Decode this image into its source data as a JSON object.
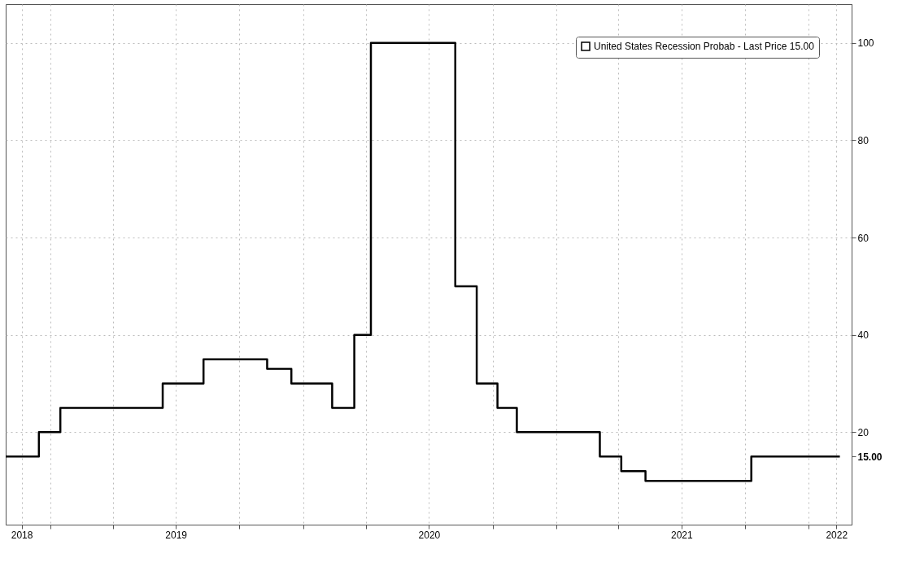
{
  "chart_data": {
    "type": "step",
    "series": [
      {
        "name": "United States Recession Probab - Last Price 15.00",
        "color": "#000000",
        "x": [
          "2018-10-28",
          "2018-12-15",
          "2019-01-15",
          "2019-06-12",
          "2019-08-10",
          "2019-11-10",
          "2019-12-15",
          "2020-02-12",
          "2020-03-15",
          "2020-04-08",
          "2020-08-08",
          "2020-09-08",
          "2020-10-08",
          "2020-11-05",
          "2021-03-05",
          "2021-04-05",
          "2021-05-10",
          "2021-10-10",
          "2022-02-15"
        ],
        "values": [
          15,
          20,
          25,
          30,
          35,
          33,
          30,
          25,
          40,
          100,
          50,
          30,
          25,
          20,
          15,
          12,
          10,
          15,
          15
        ]
      }
    ],
    "xlim": [
      "2018-10-28",
      "2022-03-04"
    ],
    "xticks": [
      {
        "value": "2018-11-20",
        "label": "2018"
      },
      {
        "value": "2019-01-01",
        "label": null
      },
      {
        "value": "2019-04-01",
        "label": null
      },
      {
        "value": "2019-07-01",
        "label": "2019"
      },
      {
        "value": "2019-10-01",
        "label": null
      },
      {
        "value": "2020-01-01",
        "label": null
      },
      {
        "value": "2020-04-01",
        "label": null
      },
      {
        "value": "2020-07-01",
        "label": "2020"
      },
      {
        "value": "2020-10-01",
        "label": null
      },
      {
        "value": "2021-01-01",
        "label": null
      },
      {
        "value": "2021-04-01",
        "label": null
      },
      {
        "value": "2021-07-01",
        "label": "2021"
      },
      {
        "value": "2021-10-01",
        "label": null
      },
      {
        "value": "2022-01-01",
        "label": null
      },
      {
        "value": "2022-02-10",
        "label": "2022"
      }
    ],
    "ylim": [
      1,
      108
    ],
    "yticks": [
      {
        "value": 15,
        "label": "15.00"
      },
      20,
      40,
      60,
      80,
      100
    ],
    "grid": true,
    "line_style": "solid",
    "marker": "none",
    "legend": "top right"
  }
}
